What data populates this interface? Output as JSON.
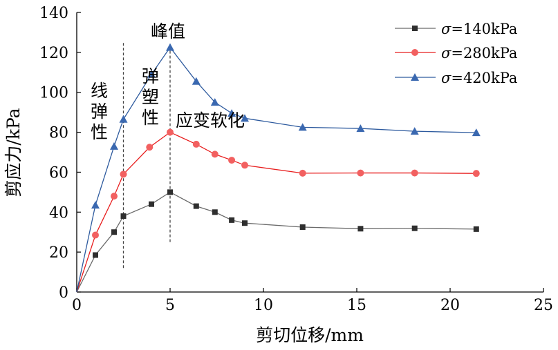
{
  "chart_data": {
    "type": "line",
    "xlabel": "剪切位移/mm",
    "ylabel": "剪应力/kPa",
    "xlim": [
      0,
      25
    ],
    "ylim": [
      0,
      140
    ],
    "xticks": [
      "0",
      "5",
      "10",
      "15",
      "20",
      "25"
    ],
    "x_tick_values": [
      0,
      5,
      10,
      15,
      20,
      25
    ],
    "yticks": [
      "0",
      "20",
      "40",
      "60",
      "80",
      "100",
      "120",
      "140"
    ],
    "y_tick_values": [
      0,
      20,
      40,
      60,
      80,
      100,
      120,
      140
    ],
    "grid": false,
    "legend_position": "top-right",
    "annotations": [
      {
        "text": "峰值"
      },
      {
        "text": "线弹性"
      },
      {
        "text": "弹塑性"
      },
      {
        "text": "应变软化"
      }
    ],
    "reference_lines_x": [
      2.5,
      5.0
    ],
    "series": [
      {
        "name_prefix": "σ",
        "name_suffix": "=140kPa",
        "color": "#6b6b6b",
        "marker_color": "#2f2f2f",
        "marker": "square",
        "x": [
          0,
          1.0,
          2.0,
          2.5,
          4.0,
          5.0,
          6.4,
          7.4,
          8.3,
          9.0,
          12.1,
          15.2,
          18.1,
          21.4
        ],
        "y": [
          0,
          18.5,
          30,
          38,
          44,
          50,
          43,
          40,
          36,
          34.5,
          32.5,
          31.7,
          31.9,
          31.5
        ]
      },
      {
        "name_prefix": "σ",
        "name_suffix": "=280kPa",
        "color": "#e81e1e",
        "marker_color": "#f26060",
        "marker": "circle",
        "x": [
          0,
          1.0,
          2.0,
          2.5,
          3.9,
          5.0,
          6.4,
          7.4,
          8.3,
          9.0,
          12.1,
          15.2,
          18.1,
          21.4
        ],
        "y": [
          0,
          28.5,
          48,
          59,
          72.5,
          80,
          74,
          69,
          66,
          63.5,
          59.5,
          59.6,
          59.6,
          59.4
        ]
      },
      {
        "name_prefix": "σ",
        "name_suffix": "=420kPa",
        "color": "#2d5a9e",
        "marker_color": "#3a68b0",
        "marker": "triangle",
        "x": [
          0,
          1.0,
          2.0,
          2.5,
          4.0,
          5.0,
          6.4,
          7.4,
          8.3,
          9.0,
          12.1,
          15.2,
          18.1,
          21.4
        ],
        "y": [
          0,
          43.5,
          73,
          86.5,
          109,
          122.5,
          105.5,
          95,
          89.5,
          87,
          82.5,
          81.9,
          80.5,
          79.8
        ]
      }
    ]
  }
}
